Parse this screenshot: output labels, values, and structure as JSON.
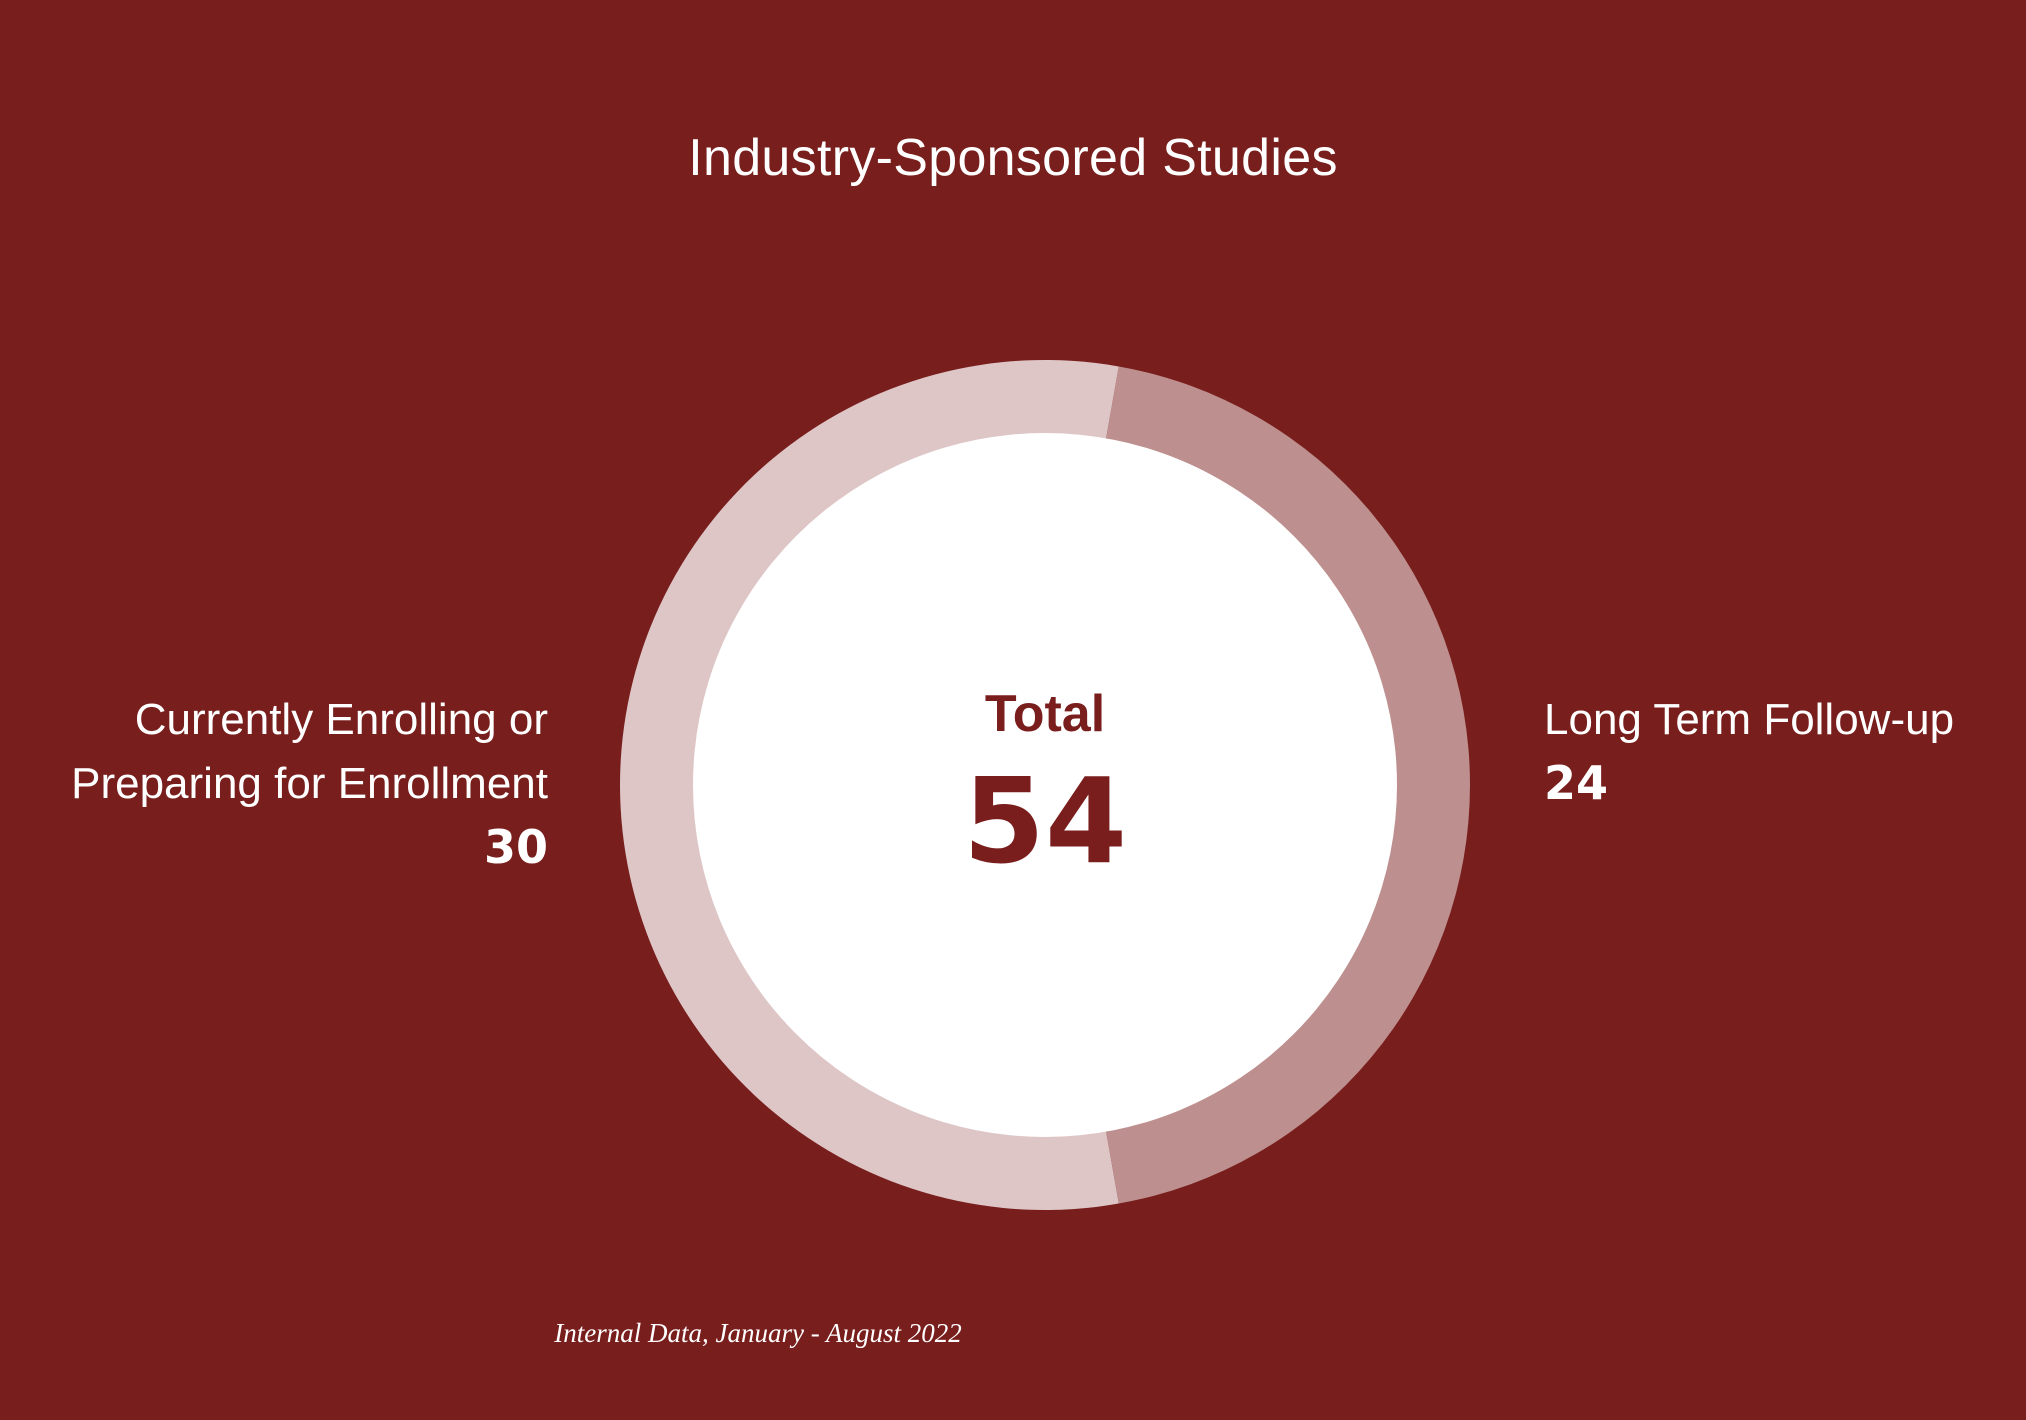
{
  "chart_data": {
    "type": "pie",
    "title": "Industry-Sponsored Studies",
    "categories": [
      "Currently Enrolling or Preparing for Enrollment",
      "Long Term Follow-up"
    ],
    "values": [
      30,
      24
    ],
    "total_label": "Total",
    "total_value": "54",
    "source": "Internal Data, January - August 2022",
    "colors": {
      "background": "#781e1c",
      "slice_enrolling": "#dec6c7",
      "slice_followup": "#bd8f8e",
      "center_fill": "#ffffff",
      "center_text": "#7a1d1d"
    }
  },
  "labels": {
    "left_line1": "Currently Enrolling or",
    "left_line2": "Preparing for Enrollment",
    "left_value": "30",
    "right_line1": "Long Term Follow-up",
    "right_value": "24"
  }
}
